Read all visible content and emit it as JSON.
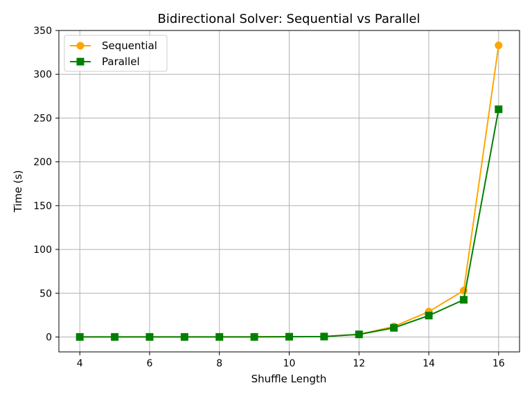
{
  "chart_data": {
    "type": "line",
    "title": "Bidirectional Solver: Sequential vs Parallel",
    "xlabel": "Shuffle Length",
    "ylabel": "Time (s)",
    "xlim": [
      3.4,
      16.6
    ],
    "ylim": [
      -17,
      350
    ],
    "xticks": [
      4,
      6,
      8,
      10,
      12,
      14,
      16
    ],
    "yticks": [
      0,
      50,
      100,
      150,
      200,
      250,
      300,
      350
    ],
    "grid": true,
    "legend_position": "top-left",
    "x": [
      4,
      5,
      6,
      7,
      8,
      9,
      10,
      11,
      12,
      13,
      14,
      15,
      16
    ],
    "series": [
      {
        "name": "Sequential",
        "color": "#ffa500",
        "marker": "circle",
        "values": [
          0.1,
          0.1,
          0.1,
          0.1,
          0.1,
          0.2,
          0.4,
          0.6,
          3,
          12,
          29,
          53,
          333
        ]
      },
      {
        "name": "Parallel",
        "color": "#008000",
        "marker": "square",
        "values": [
          0.1,
          0.1,
          0.1,
          0.1,
          0.1,
          0.1,
          0.3,
          0.5,
          3,
          10.5,
          24.5,
          42.5,
          260
        ]
      }
    ]
  }
}
